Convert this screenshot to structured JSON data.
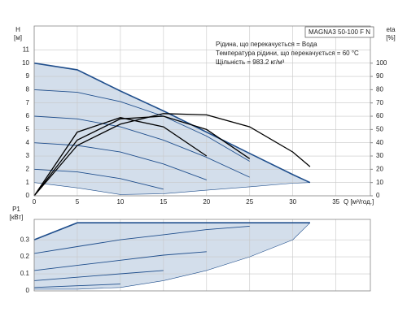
{
  "chart_data": [
    {
      "type": "line",
      "title": "MAGNA3 50-100 F N",
      "annotations": [
        "Рідина, що перекачується = Вода",
        "Температура рідини, що перекачується = 60 °C",
        "Щільність = 983.2 кг/м³"
      ],
      "x_label": "Q [м³/год.]",
      "y_label": "H",
      "y_unit": "[м]",
      "y2_label": "eta",
      "y2_unit": "[%]",
      "x": [
        0,
        5,
        10,
        15,
        20,
        25,
        30,
        32
      ],
      "xlim": [
        0,
        39
      ],
      "xticks": [
        0,
        5,
        10,
        15,
        20,
        25,
        30,
        35
      ],
      "xtick_labels": true,
      "ylim": [
        0,
        12.8
      ],
      "yticks": [
        0,
        1,
        2,
        3,
        4,
        5,
        6,
        7,
        8,
        9,
        10,
        11
      ],
      "y2lim": [
        0,
        128
      ],
      "y2ticks": [
        0,
        10,
        20,
        30,
        40,
        50,
        60,
        70,
        80,
        90,
        100
      ],
      "grid": true,
      "area_color": "#d3deeb",
      "series": [
        {
          "style": "envelope",
          "color": "#1f4e8c",
          "values": [
            10,
            9.5,
            7.9,
            6.4,
            4.8,
            3.2,
            1.6,
            1.0
          ]
        },
        {
          "style": "lower",
          "color": "#1f4e8c",
          "values": [
            1,
            0.6,
            0.1,
            0.16,
            0.42,
            0.68,
            0.95,
            1.0
          ]
        },
        {
          "style": "speed",
          "color": "#1f4e8c",
          "values": [
            8,
            7.8,
            7.1,
            6.0,
            4.5,
            2.6,
            null,
            null
          ]
        },
        {
          "style": "speed",
          "color": "#1f4e8c",
          "values": [
            6,
            5.8,
            5.2,
            4.2,
            2.9,
            1.4,
            null,
            null
          ]
        },
        {
          "style": "speed",
          "color": "#1f4e8c",
          "values": [
            4,
            3.8,
            3.3,
            2.4,
            1.2,
            null,
            null,
            null
          ]
        },
        {
          "style": "speed",
          "color": "#1f4e8c",
          "values": [
            2,
            1.8,
            1.3,
            0.5,
            null,
            null,
            null,
            null
          ]
        },
        {
          "style": "efficiency",
          "axis": "y2",
          "color": "#000000",
          "values": [
            0,
            38,
            54,
            62,
            61,
            52,
            33,
            22
          ]
        },
        {
          "style": "efficiency",
          "axis": "y2",
          "color": "#000000",
          "values": [
            0,
            42,
            58,
            60,
            50,
            28,
            null,
            null
          ]
        },
        {
          "style": "efficiency",
          "axis": "y2",
          "color": "#000000",
          "values": [
            0,
            48,
            59,
            52,
            30,
            null,
            null,
            null
          ]
        }
      ]
    },
    {
      "type": "line",
      "y_label": "P1",
      "y_unit": "[кВт]",
      "x": [
        0,
        5,
        10,
        15,
        20,
        25,
        30,
        32
      ],
      "xlim": [
        0,
        39
      ],
      "xticks": [
        0,
        5,
        10,
        15,
        20,
        25,
        30,
        35
      ],
      "xtick_labels": false,
      "ylim": [
        0,
        0.42
      ],
      "yticks": [
        0,
        0.1,
        0.2,
        0.3
      ],
      "grid": true,
      "area_color": "#d3deeb",
      "series": [
        {
          "style": "envelope",
          "color": "#1f4e8c",
          "values": [
            0.3,
            0.4,
            0.4,
            0.4,
            0.4,
            0.4,
            0.4,
            0.4
          ]
        },
        {
          "style": "lower",
          "color": "#1f4e8c",
          "values": [
            0.01,
            0.01,
            0.02,
            0.06,
            0.12,
            0.2,
            0.3,
            0.4
          ]
        },
        {
          "style": "speed",
          "color": "#1f4e8c",
          "values": [
            0.22,
            0.26,
            0.3,
            0.33,
            0.36,
            0.38,
            null,
            null
          ]
        },
        {
          "style": "speed",
          "color": "#1f4e8c",
          "values": [
            0.12,
            0.15,
            0.18,
            0.21,
            0.23,
            null,
            null,
            null
          ]
        },
        {
          "style": "speed",
          "color": "#1f4e8c",
          "values": [
            0.06,
            0.08,
            0.1,
            0.12,
            null,
            null,
            null,
            null
          ]
        },
        {
          "style": "speed",
          "color": "#1f4e8c",
          "values": [
            0.02,
            0.03,
            0.04,
            null,
            null,
            null,
            null,
            null
          ]
        }
      ]
    }
  ]
}
